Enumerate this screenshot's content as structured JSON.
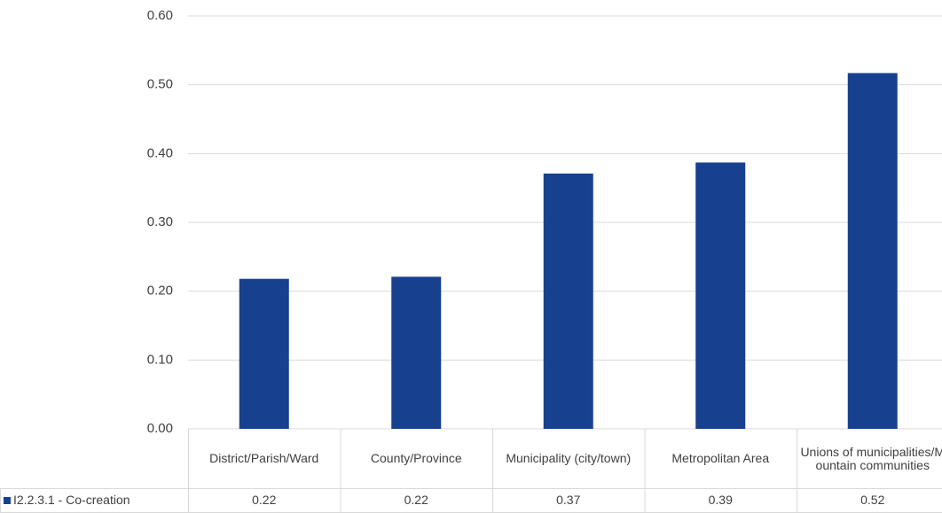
{
  "chart_data": {
    "type": "bar",
    "categories": [
      "District/Parish/Ward",
      "County/Province",
      "Municipality (city/town)",
      "Metropolitan Area",
      "Unions of municipalities/Mountain communities"
    ],
    "series": [
      {
        "name": "I2.2.3.1 - Co-creation",
        "color": "#17408f",
        "values": [
          0.218,
          0.221,
          0.371,
          0.387,
          0.517
        ],
        "value_labels": [
          "0.22",
          "0.22",
          "0.37",
          "0.39",
          "0.52"
        ]
      }
    ],
    "ylim": [
      0,
      0.6
    ],
    "yticks": [
      {
        "value": 0,
        "label": "0.00"
      },
      {
        "value": 0.1,
        "label": "0.10"
      },
      {
        "value": 0.2,
        "label": "0.20"
      },
      {
        "value": 0.3,
        "label": "0.30"
      },
      {
        "value": 0.4,
        "label": "0.40"
      },
      {
        "value": 0.5,
        "label": "0.50"
      },
      {
        "value": 0.6,
        "label": "0.60"
      }
    ],
    "grid": true
  }
}
